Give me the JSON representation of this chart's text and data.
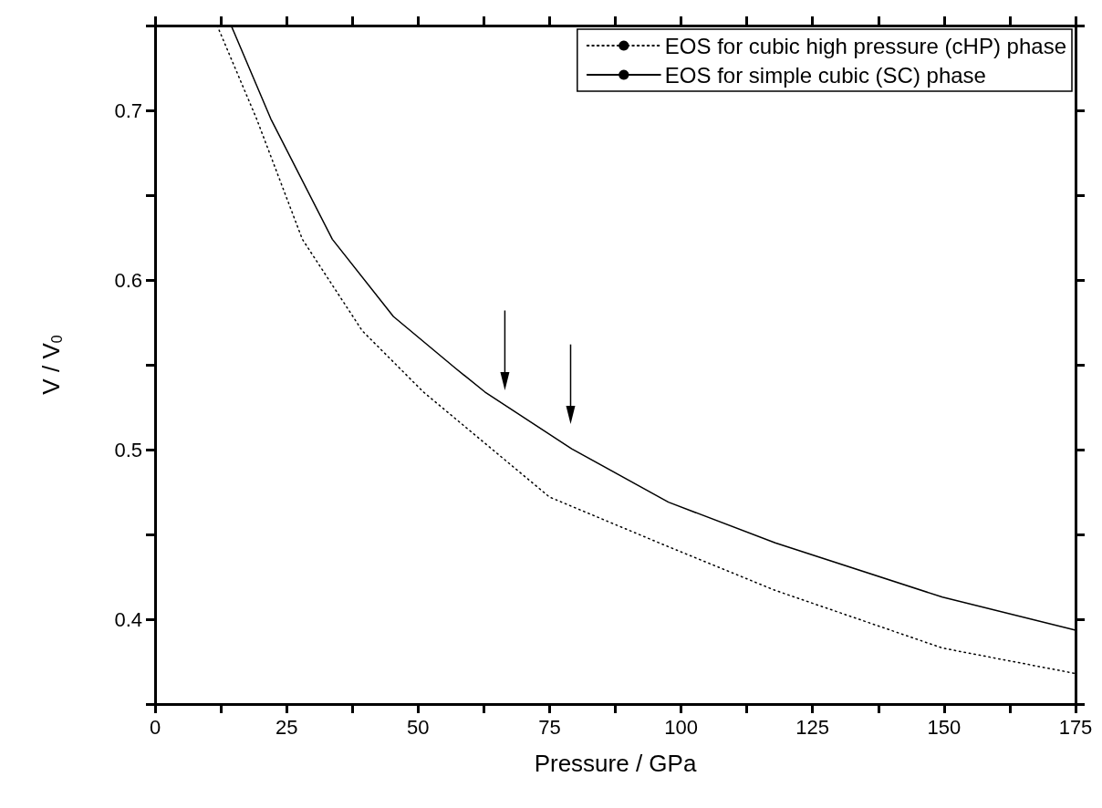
{
  "chart_data": {
    "type": "line",
    "xlabel": "Pressure / GPa",
    "ylabel": "V / V$_{0}$",
    "xlim": [
      0,
      175
    ],
    "ylim": [
      0.35,
      0.75
    ],
    "xticks": [
      0,
      {
        "value": 12.5,
        "label": null
      },
      25,
      {
        "value": 37.5,
        "label": null
      },
      50,
      {
        "value": 62.5,
        "label": null
      },
      75,
      {
        "value": 87.5,
        "label": null
      },
      100,
      {
        "value": 112.5,
        "label": null
      },
      125,
      {
        "value": 137.5,
        "label": null
      },
      150,
      {
        "value": 162.5,
        "label": null
      },
      175
    ],
    "yticks": [
      {
        "value": 0.35,
        "label": null
      },
      0.4,
      {
        "value": 0.45,
        "label": null
      },
      0.5,
      {
        "value": 0.55,
        "label": null
      },
      0.6,
      {
        "value": 0.65,
        "label": null
      },
      0.7,
      {
        "value": 0.75,
        "label": null
      }
    ],
    "grid": false,
    "legend": "top right",
    "marker": "none",
    "series": [
      {
        "name": "EOS for cubic high pressure (cHP) phase",
        "color": "#000000",
        "line_style": "dotted",
        "x": [
          11.8,
          19.3,
          28.0,
          39.4,
          51.0,
          75,
          97.0,
          117.9,
          149.7,
          175
        ],
        "values": [
          0.75,
          0.695,
          0.624,
          0.57,
          0.534,
          0.472,
          0.4435,
          0.417,
          0.383,
          0.368
        ]
      },
      {
        "name": "EOS for simple cubic (SC) phase",
        "color": "#000000",
        "line_style": "solid",
        "x": [
          14.6,
          22.0,
          33.7,
          45.3,
          57.1,
          62.7,
          79.2,
          97.6,
          117.9,
          149.7,
          175
        ],
        "values": [
          0.749,
          0.695,
          0.624,
          0.5785,
          0.548,
          0.534,
          0.5005,
          0.469,
          0.445,
          0.413,
          0.3935
        ]
      }
    ]
  }
}
